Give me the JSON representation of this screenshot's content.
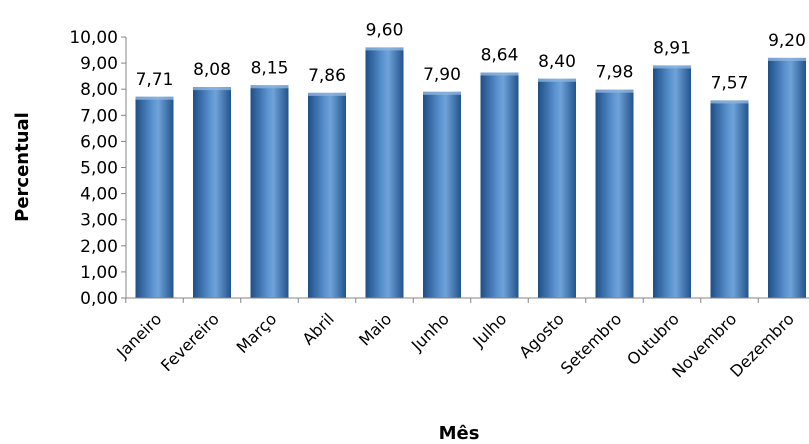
{
  "chart_data": {
    "type": "bar",
    "xlabel": "Mês",
    "ylabel": "Percentual",
    "ylim": [
      0,
      10
    ],
    "yticks": [
      "0,00",
      "1,00",
      "2,00",
      "3,00",
      "4,00",
      "5,00",
      "6,00",
      "7,00",
      "8,00",
      "9,00",
      "10,00"
    ],
    "categories": [
      "Janeiro",
      "Fevereiro",
      "Março",
      "Abril",
      "Maio",
      "Junho",
      "Julho",
      "Agosto",
      "Setembro",
      "Outubro",
      "Novembro",
      "Dezembro"
    ],
    "values": [
      7.71,
      8.08,
      8.15,
      7.86,
      9.6,
      7.9,
      8.64,
      8.4,
      7.98,
      8.91,
      7.57,
      9.2
    ],
    "value_labels": [
      "7,71",
      "8,08",
      "8,15",
      "7,86",
      "9,60",
      "7,90",
      "8,64",
      "8,40",
      "7,98",
      "8,91",
      "7,57",
      "9,20"
    ],
    "grid": false,
    "legend": "none",
    "colors": {
      "bar_dark": "#1f4e86",
      "bar_mid": "#4a84c4",
      "bar_light": "#8fb5e0",
      "axis": "#868686"
    }
  }
}
